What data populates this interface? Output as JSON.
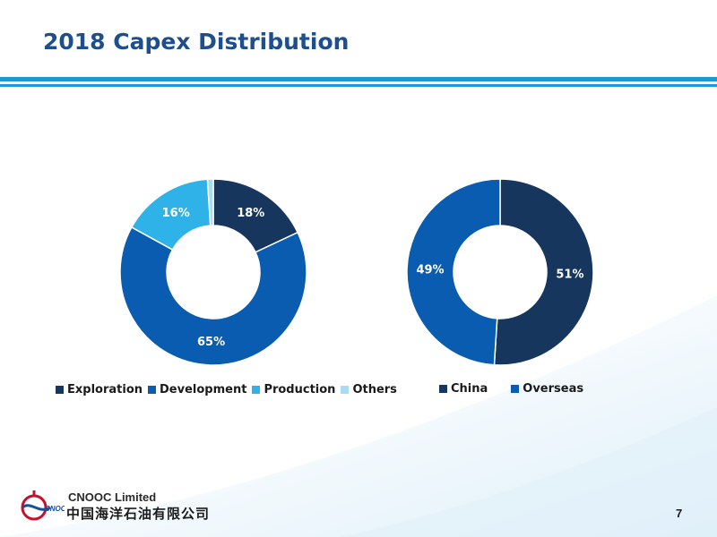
{
  "page": {
    "title": "2018 Capex Distribution",
    "page_number": "7",
    "company_en": "CNOOC Limited",
    "company_cn": "中国海洋石油有限公司",
    "logo_text": "CNOOC"
  },
  "colors": {
    "dark_navy": "#17365d",
    "mid_blue": "#0a5cb0",
    "light_blue": "#2fb2e8",
    "pale_blue": "#a9dcf3",
    "rule_blue": "#1a9ad6"
  },
  "chart_data": [
    {
      "type": "pie",
      "subtype": "donut",
      "title": "",
      "categories": [
        "Exploration",
        "Development",
        "Production",
        "Others"
      ],
      "values": [
        18,
        65,
        16,
        1
      ],
      "labels": [
        "18%",
        "65%",
        "16%",
        ""
      ],
      "colors": [
        "#17365d",
        "#0a5cb0",
        "#2fb2e8",
        "#a9dcf3"
      ],
      "legend_position": "bottom"
    },
    {
      "type": "pie",
      "subtype": "donut",
      "title": "",
      "categories": [
        "China",
        "Overseas"
      ],
      "values": [
        51,
        49
      ],
      "labels": [
        "51%",
        "49%"
      ],
      "colors": [
        "#17365d",
        "#0a5cb0"
      ],
      "legend_position": "bottom"
    }
  ]
}
